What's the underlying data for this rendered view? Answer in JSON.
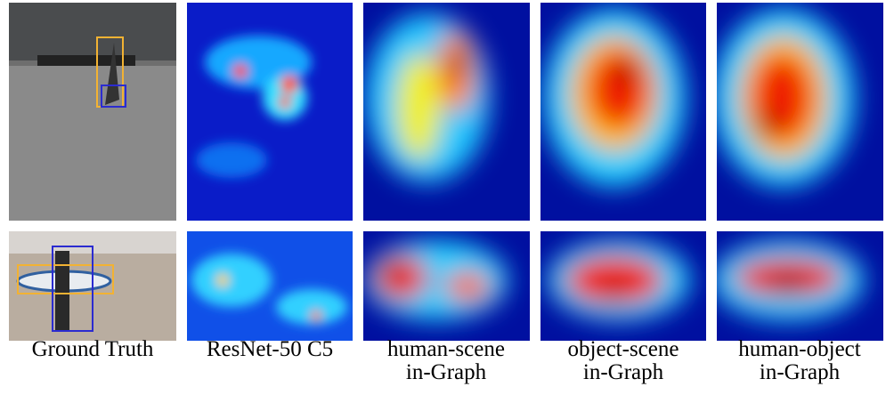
{
  "captions": [
    [
      "Ground Truth"
    ],
    [
      "ResNet-50 C5"
    ],
    [
      "human-scene",
      "in-Graph"
    ],
    [
      "object-scene",
      "in-Graph"
    ],
    [
      "human-object",
      "in-Graph"
    ]
  ]
}
